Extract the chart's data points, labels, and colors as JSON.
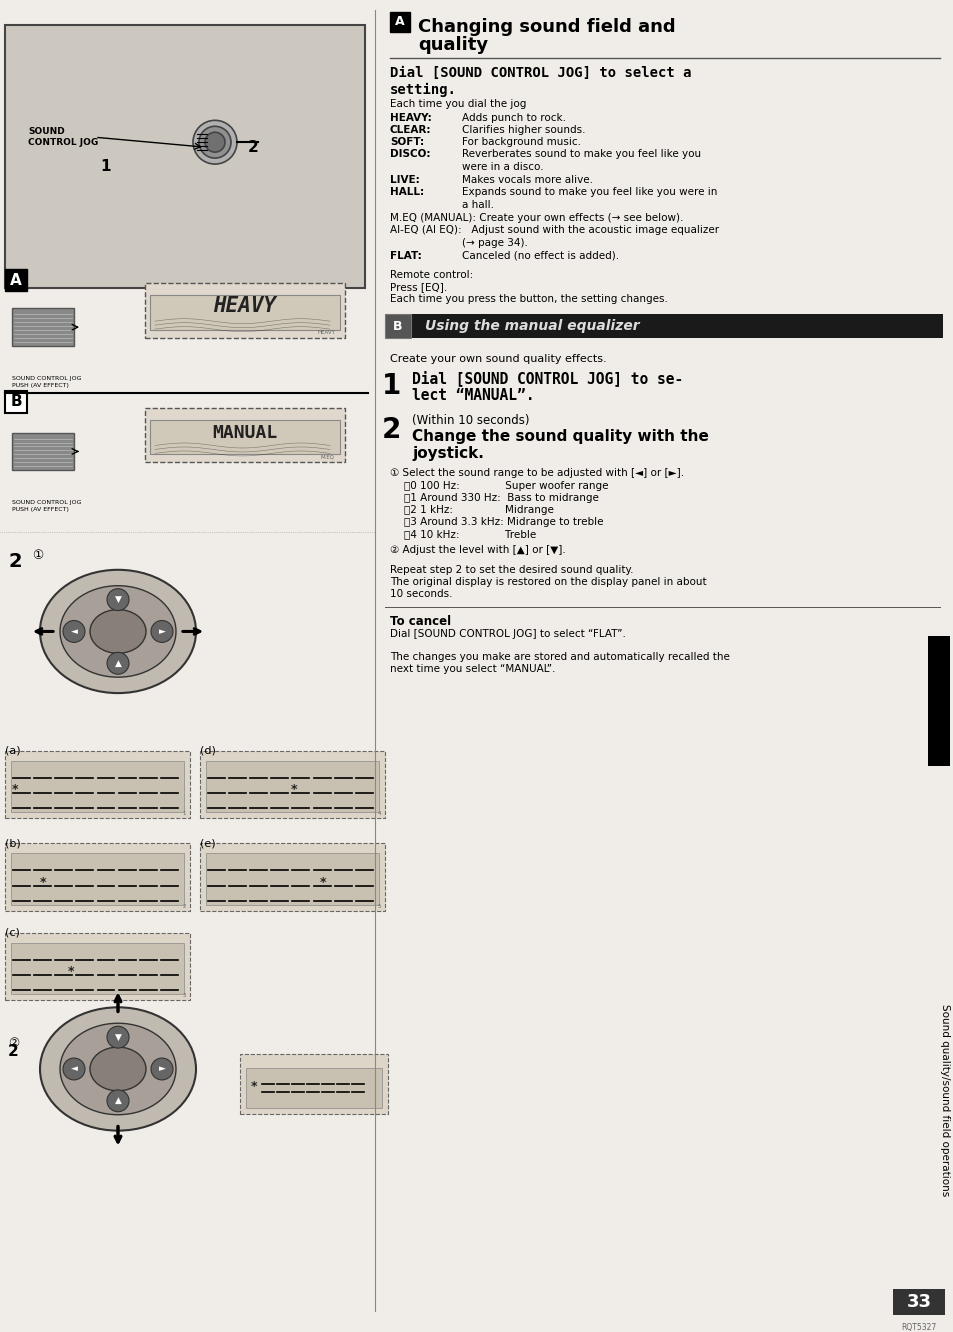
{
  "bg_color": "#f0ede8",
  "page_width": 9.54,
  "page_height": 13.32,
  "sidebar_text": "Sound quality/sound field operations",
  "page_num": "33",
  "page_code": "RQT5327"
}
